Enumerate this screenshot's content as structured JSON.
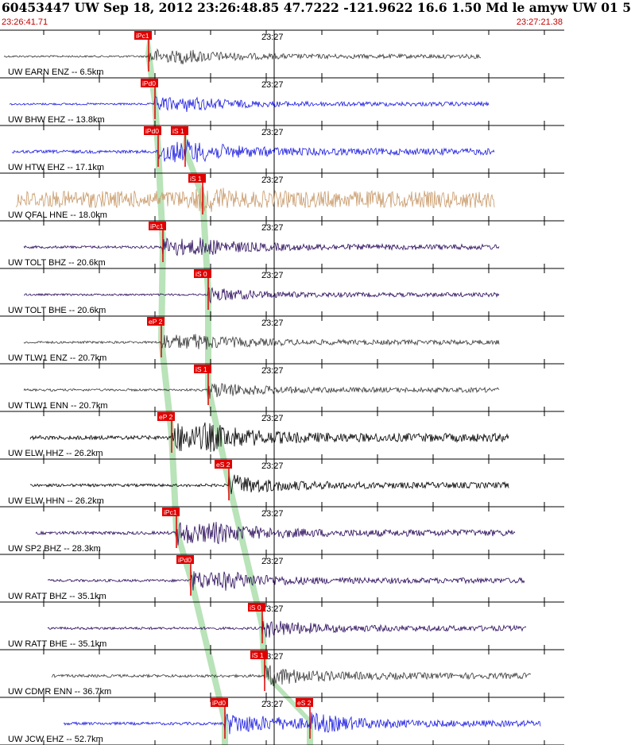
{
  "header": {
    "title": "60453447 UW Sep 18, 2012 23:26:48.85   47.7222 -121.9622 16.6 1.50 Md le amyw UW 01   5",
    "start_time": "23:26:41.71",
    "end_time": "23:27:21.38"
  },
  "colors": {
    "pick_box": "#e00000",
    "pick_text": "#ffffff",
    "window_shade": "#b9e3b9",
    "frame": "#000000",
    "label_red": "#c00000"
  },
  "chart_data": {
    "type": "line",
    "title": "",
    "time_axis": {
      "start": "23:26:41.71",
      "end": "23:27:21.38",
      "minute_label": "23:27"
    },
    "traces": [
      {
        "label": "UW EARN ENZ -- 6.5km",
        "color": "#3a3a3a",
        "amp": 0.35,
        "p_pick": "iPc1",
        "s_pick": ""
      },
      {
        "label": "UW BHW EHZ -- 13.8km",
        "color": "#1a1ae0",
        "amp": 0.35,
        "p_pick": "iPd0",
        "s_pick": ""
      },
      {
        "label": "UW HTW EHZ -- 17.1km",
        "color": "#1a1ae0",
        "amp": 0.55,
        "p_pick": "iPd0",
        "s_pick": "iS 1"
      },
      {
        "label": "UW QFAL HNE -- 18.0km",
        "color": "#c89a6a",
        "amp": 0.6,
        "p_pick": "",
        "s_pick": "iS 1"
      },
      {
        "label": "UW TOLT BHZ -- 20.6km",
        "color": "#2a0a5a",
        "amp": 0.45,
        "p_pick": "iPc1",
        "s_pick": ""
      },
      {
        "label": "UW TOLT BHE -- 20.6km",
        "color": "#2a0a5a",
        "amp": 0.35,
        "p_pick": "",
        "s_pick": "iS 0"
      },
      {
        "label": "UW TLW1 ENZ -- 20.7km",
        "color": "#3a3a3a",
        "amp": 0.4,
        "p_pick": "eP 2",
        "s_pick": ""
      },
      {
        "label": "UW TLW1 ENN -- 20.7km",
        "color": "#3a3a3a",
        "amp": 0.4,
        "p_pick": "",
        "s_pick": "iS 1"
      },
      {
        "label": "UW ELW HHZ -- 26.2km",
        "color": "#000000",
        "amp": 0.7,
        "p_pick": "eP 2",
        "s_pick": ""
      },
      {
        "label": "UW ELW HHN -- 26.2km",
        "color": "#000000",
        "amp": 0.5,
        "p_pick": "",
        "s_pick": "eS 2"
      },
      {
        "label": "UW SP2 BHZ -- 28.3km",
        "color": "#2a0a5a",
        "amp": 0.55,
        "p_pick": "iPc1",
        "s_pick": ""
      },
      {
        "label": "UW RATT BHZ -- 35.1km",
        "color": "#2a0a5a",
        "amp": 0.45,
        "p_pick": "iPd0",
        "s_pick": ""
      },
      {
        "label": "UW RATT BHE -- 35.1km",
        "color": "#2a0a5a",
        "amp": 0.45,
        "p_pick": "",
        "s_pick": "iS 0"
      },
      {
        "label": "UW CDMR ENN -- 36.7km",
        "color": "#3a3a3a",
        "amp": 0.5,
        "p_pick": "",
        "s_pick": "iS 1"
      },
      {
        "label": "UW JCW EHZ -- 52.7km",
        "color": "#1a1ae0",
        "amp": 0.5,
        "p_pick": "iPd0",
        "s_pick": "eS 2"
      }
    ]
  }
}
